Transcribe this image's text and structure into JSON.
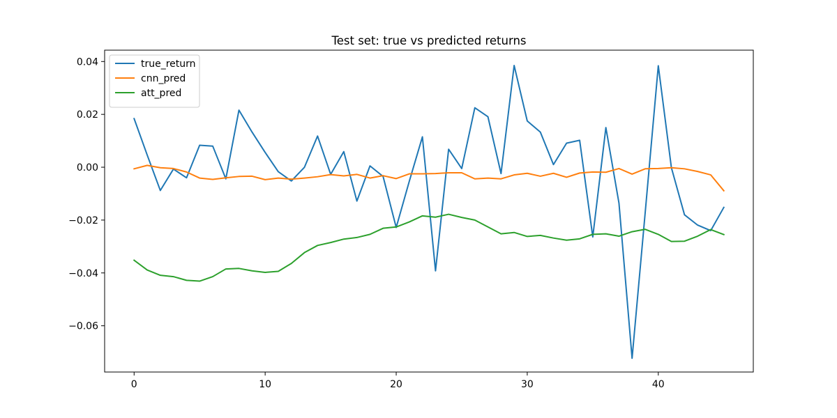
{
  "chart_data": {
    "type": "line",
    "title": "Test set: true vs predicted returns",
    "xlabel": "",
    "ylabel": "",
    "xlim": [
      -2.25,
      47.25
    ],
    "ylim": [
      -0.0775,
      0.0443
    ],
    "xticks": [
      0,
      10,
      20,
      30,
      40
    ],
    "xtick_labels": [
      "0",
      "10",
      "20",
      "30",
      "40"
    ],
    "yticks": [
      -0.06,
      -0.04,
      -0.02,
      0.0,
      0.02,
      0.04
    ],
    "ytick_labels": [
      "−0.06",
      "−0.04",
      "−0.02",
      "0.00",
      "0.02",
      "0.04"
    ],
    "grid": false,
    "legend_position": "top-left",
    "x": [
      0,
      1,
      2,
      3,
      4,
      5,
      6,
      7,
      8,
      9,
      10,
      11,
      12,
      13,
      14,
      15,
      16,
      17,
      18,
      19,
      20,
      21,
      22,
      23,
      24,
      25,
      26,
      27,
      28,
      29,
      30,
      31,
      32,
      33,
      34,
      35,
      36,
      37,
      38,
      39,
      40,
      41,
      42,
      43,
      44,
      45
    ],
    "series": [
      {
        "name": "true_return",
        "color": "#1f77b4",
        "values": [
          0.0184,
          0.0046,
          -0.0088,
          -0.0007,
          -0.004,
          0.0083,
          0.008,
          -0.0044,
          0.0216,
          0.0133,
          0.0056,
          -0.0017,
          -0.0052,
          0.0,
          0.0118,
          -0.0027,
          0.0059,
          -0.0128,
          0.0005,
          -0.0035,
          -0.0228,
          -0.0053,
          0.0115,
          -0.0392,
          0.0068,
          -0.0005,
          0.0225,
          0.0191,
          -0.0024,
          0.0385,
          0.0175,
          0.0133,
          0.001,
          0.0091,
          0.0102,
          -0.0264,
          0.015,
          -0.0136,
          -0.0723,
          -0.0172,
          0.0384,
          -0.0002,
          -0.018,
          -0.0219,
          -0.024,
          -0.0152
        ]
      },
      {
        "name": "cnn_pred",
        "color": "#ff7f0e",
        "values": [
          -0.0006,
          0.0007,
          -0.0002,
          -0.0005,
          -0.0018,
          -0.0041,
          -0.0046,
          -0.004,
          -0.0035,
          -0.0034,
          -0.0047,
          -0.0041,
          -0.0045,
          -0.0041,
          -0.0036,
          -0.0028,
          -0.0033,
          -0.0027,
          -0.0041,
          -0.0032,
          -0.0043,
          -0.0025,
          -0.0025,
          -0.0024,
          -0.0021,
          -0.0021,
          -0.0044,
          -0.0041,
          -0.0044,
          -0.0029,
          -0.0023,
          -0.0034,
          -0.0023,
          -0.0038,
          -0.0022,
          -0.0018,
          -0.0019,
          -0.0005,
          -0.0026,
          -0.0006,
          -0.0005,
          -0.0002,
          -0.0006,
          -0.0016,
          -0.0029,
          -0.0089
        ]
      },
      {
        "name": "att_pred",
        "color": "#2ca02c",
        "values": [
          -0.0352,
          -0.0389,
          -0.0409,
          -0.0414,
          -0.0428,
          -0.0431,
          -0.0414,
          -0.0385,
          -0.0383,
          -0.0392,
          -0.0398,
          -0.0394,
          -0.0364,
          -0.0323,
          -0.0296,
          -0.0285,
          -0.0272,
          -0.0266,
          -0.0254,
          -0.0231,
          -0.0226,
          -0.0207,
          -0.0184,
          -0.0189,
          -0.0178,
          -0.019,
          -0.02,
          -0.0226,
          -0.0252,
          -0.0247,
          -0.0262,
          -0.0258,
          -0.0268,
          -0.0276,
          -0.0271,
          -0.0254,
          -0.0252,
          -0.0261,
          -0.0244,
          -0.0235,
          -0.0254,
          -0.0281,
          -0.028,
          -0.0261,
          -0.0236,
          -0.0255
        ]
      }
    ]
  }
}
